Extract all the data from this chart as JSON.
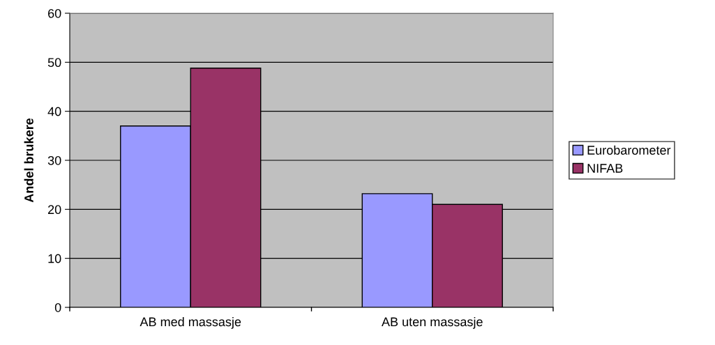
{
  "chart_data": {
    "type": "bar",
    "ylabel": "Andel brukere",
    "categories": [
      "AB med massasje",
      "AB uten massasje"
    ],
    "series": [
      {
        "name": "Eurobarometer",
        "color": "#9999ff",
        "values": [
          37,
          23.2
        ]
      },
      {
        "name": "NIFAB",
        "color": "#993366",
        "values": [
          48.8,
          21
        ]
      }
    ],
    "ylim": [
      0,
      60
    ],
    "yticks": [
      0,
      10,
      20,
      30,
      40,
      50,
      60
    ],
    "grid": "y",
    "legend": "right"
  }
}
